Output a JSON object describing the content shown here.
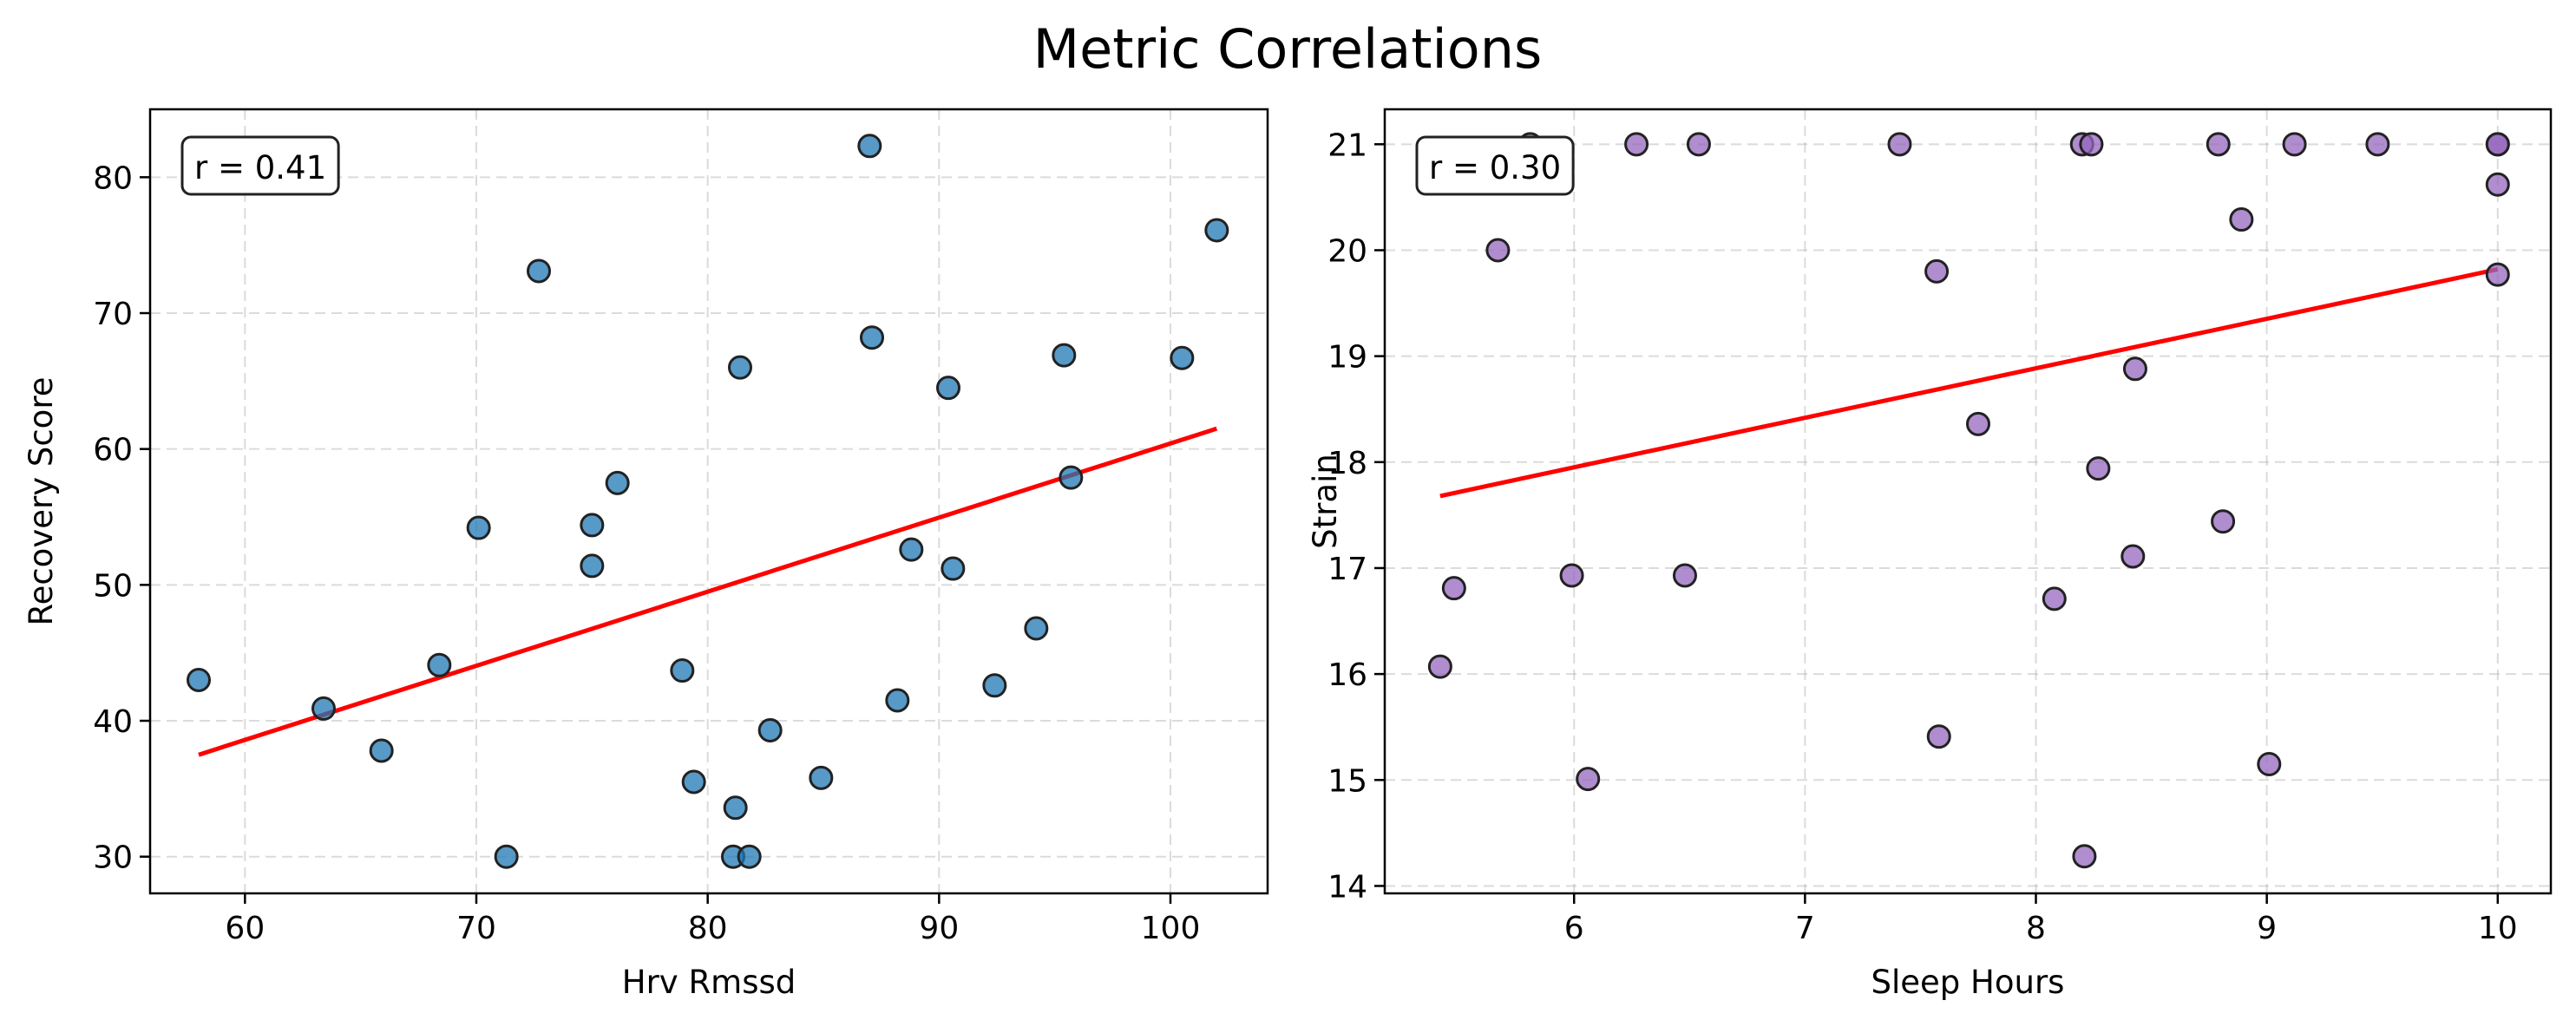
{
  "figure": {
    "title": "Metric Correlations"
  },
  "chart_data": [
    {
      "type": "scatter",
      "title": "",
      "xlabel": "Hrv Rmssd",
      "ylabel": "Recovery Score",
      "xlim": [
        55.9,
        104.2
      ],
      "ylim": [
        27.3,
        85.0
      ],
      "xticks": [
        60,
        70,
        80,
        90,
        100
      ],
      "yticks": [
        30,
        40,
        50,
        60,
        70,
        80
      ],
      "grid": true,
      "point_color": "#1f77b4",
      "trend_color": "#ff0000",
      "annotation": "r = 0.41",
      "trendline": {
        "x": [
          58.0,
          102.0
        ],
        "y": [
          37.5,
          61.5
        ]
      },
      "points": {
        "x": [
          58.0,
          63.4,
          65.9,
          68.4,
          70.1,
          71.3,
          72.7,
          75.0,
          75.0,
          76.1,
          78.9,
          79.4,
          81.1,
          81.2,
          81.4,
          81.8,
          82.7,
          84.9,
          87.0,
          87.1,
          88.2,
          88.8,
          90.4,
          90.6,
          92.4,
          94.2,
          95.4,
          95.7,
          100.5,
          102.0
        ],
        "y": [
          43.0,
          40.9,
          37.8,
          44.1,
          54.2,
          30.0,
          73.1,
          54.4,
          51.4,
          57.5,
          43.7,
          35.5,
          30.0,
          33.6,
          66.0,
          30.0,
          39.3,
          35.8,
          82.3,
          68.2,
          41.5,
          52.6,
          64.5,
          51.2,
          42.6,
          46.8,
          66.9,
          57.9,
          66.7,
          76.1
        ]
      }
    },
    {
      "type": "scatter",
      "title": "",
      "xlabel": "Sleep Hours",
      "ylabel": "Strain",
      "xlim": [
        5.18,
        10.23
      ],
      "ylim": [
        13.93,
        21.33
      ],
      "xticks": [
        6,
        7,
        8,
        9,
        10
      ],
      "yticks": [
        14,
        15,
        16,
        17,
        18,
        19,
        20,
        21
      ],
      "grid": true,
      "point_color": "#9467bd",
      "trend_color": "#ff0000",
      "annotation": "r = 0.30",
      "trendline": {
        "x": [
          5.42,
          10.0
        ],
        "y": [
          17.68,
          19.82
        ]
      },
      "points": {
        "x": [
          5.42,
          5.48,
          5.67,
          5.81,
          5.99,
          6.06,
          6.27,
          6.48,
          6.54,
          7.41,
          7.57,
          7.58,
          7.75,
          8.08,
          8.2,
          8.21,
          8.24,
          8.27,
          8.42,
          8.43,
          8.79,
          8.81,
          8.89,
          9.01,
          9.12,
          9.48,
          10.0,
          10.0,
          10.0,
          10.0
        ],
        "y": [
          16.07,
          16.81,
          20.0,
          21.0,
          16.93,
          15.01,
          21.0,
          16.93,
          21.0,
          21.0,
          19.8,
          15.41,
          18.36,
          16.71,
          21.0,
          14.28,
          21.0,
          17.94,
          17.11,
          18.88,
          21.0,
          17.44,
          20.29,
          15.15,
          21.0,
          21.0,
          21.0,
          21.0,
          20.62,
          19.77
        ]
      }
    }
  ]
}
